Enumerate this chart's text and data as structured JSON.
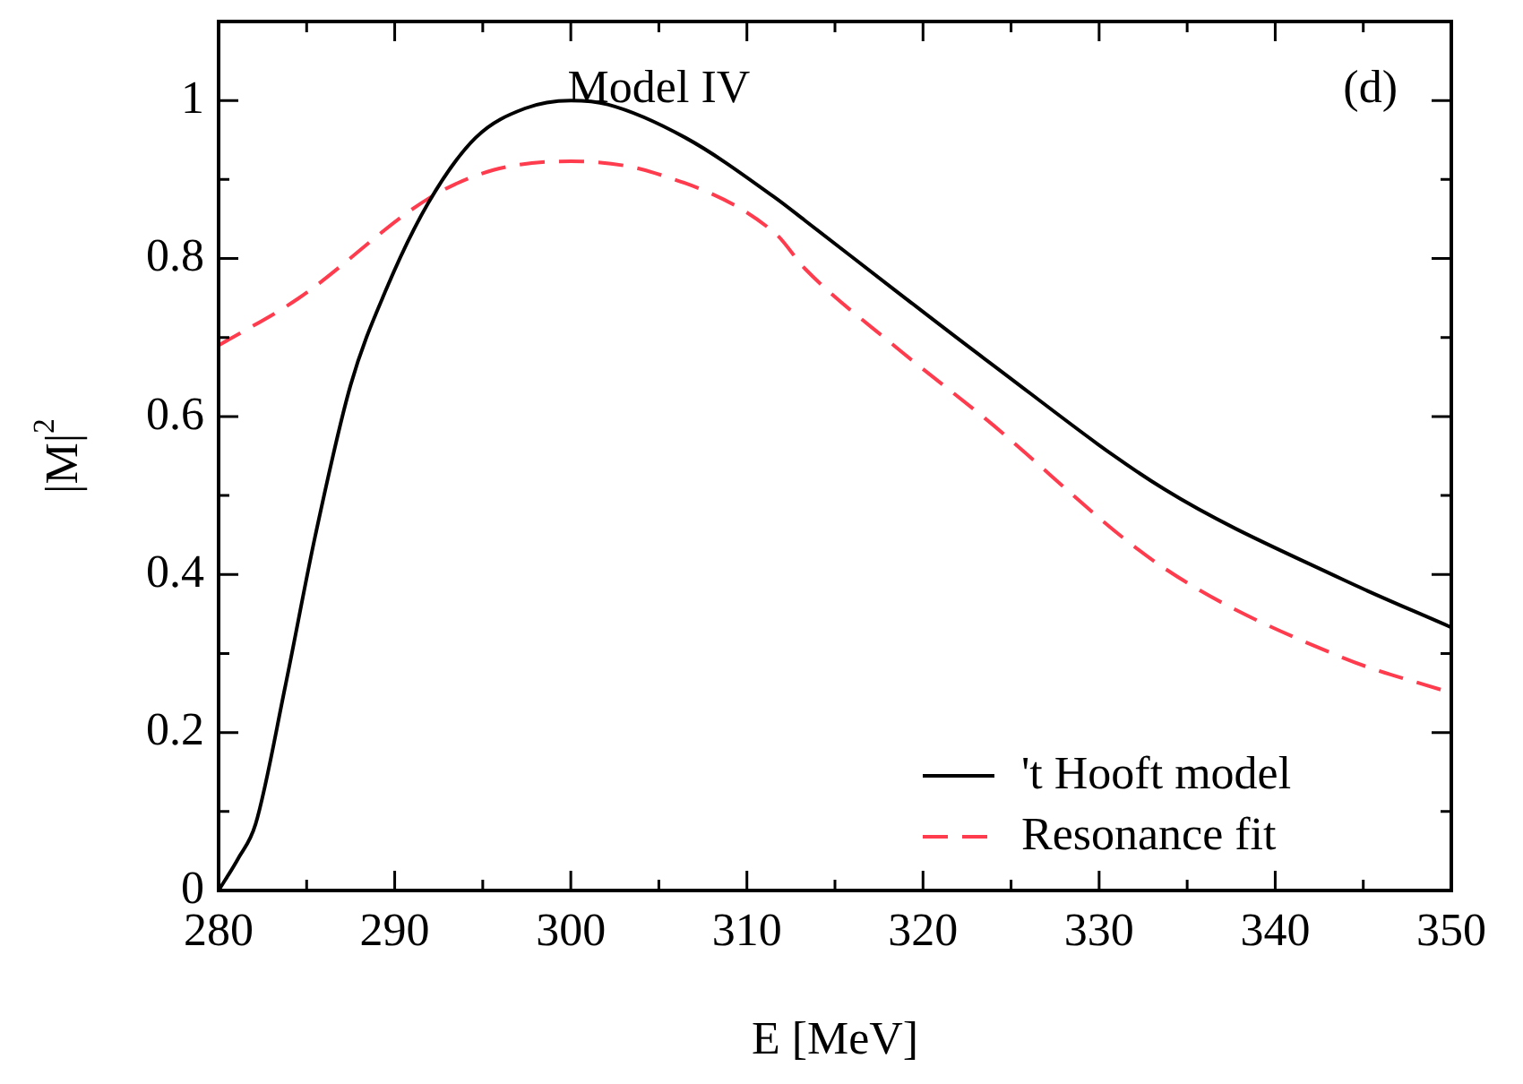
{
  "chart_data": {
    "type": "line",
    "xlabel": "E [MeV]",
    "ylabel": "|M|$^{2}$",
    "annotations": [
      "Model IV",
      "(d)"
    ],
    "xlim": [
      280,
      350
    ],
    "ylim": [
      0,
      1.1
    ],
    "xticks": [
      280,
      {
        "value": 285,
        "label": null
      },
      290,
      {
        "value": 295,
        "label": null
      },
      300,
      {
        "value": 305,
        "label": null
      },
      310,
      {
        "value": 315,
        "label": null
      },
      320,
      {
        "value": 325,
        "label": null
      },
      330,
      {
        "value": 335,
        "label": null
      },
      340,
      {
        "value": 345,
        "label": null
      },
      350
    ],
    "yticks": [
      0,
      {
        "value": 0.1,
        "label": null
      },
      {
        "value": 0.2,
        "label": "0.2"
      },
      {
        "value": 0.3,
        "label": null
      },
      {
        "value": 0.4,
        "label": "0.4"
      },
      {
        "value": 0.5,
        "label": null
      },
      {
        "value": 0.6,
        "label": "0.6"
      },
      {
        "value": 0.7,
        "label": null
      },
      {
        "value": 0.8,
        "label": "0.8"
      },
      {
        "value": 0.9,
        "label": null
      },
      1,
      {
        "value": 1.1,
        "label": null
      }
    ],
    "grid": false,
    "legend": "bottom right",
    "marker": "none",
    "series": [
      {
        "name": "'t Hooft model",
        "color": "#000000",
        "line_style": "solid",
        "x": [
          280,
          281.1,
          282.1,
          283.8,
          285.5,
          287.5,
          289.5,
          291.9,
          294.6,
          297.4,
          300,
          302.1,
          306.5,
          311.6,
          313.3,
          318.4,
          323.5,
          333.7,
          343.8,
          350
        ],
        "values": [
          0,
          0.04,
          0.084,
          0.26,
          0.45,
          0.64,
          0.76,
          0.87,
          0.953,
          0.99,
          1.0,
          0.995,
          0.953,
          0.877,
          0.848,
          0.76,
          0.673,
          0.508,
          0.394,
          0.333
        ]
      },
      {
        "name": "Resonance fit",
        "color": "#ff3b4e",
        "line_style": "dashed",
        "x": [
          280,
          284.5,
          292,
          295.6,
          300,
          304.8,
          311.6,
          313.3,
          318.4,
          323.5,
          333.7,
          343.8,
          350
        ],
        "values": [
          0.69,
          0.749,
          0.877,
          0.912,
          0.923,
          0.908,
          0.832,
          0.787,
          0.689,
          0.598,
          0.408,
          0.295,
          0.25
        ]
      }
    ]
  }
}
